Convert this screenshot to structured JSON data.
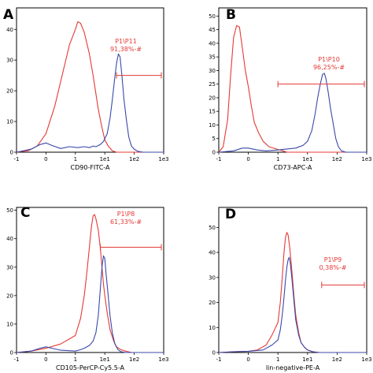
{
  "chart_data": [
    {
      "panel": "A",
      "type": "line",
      "xlabel": "CD90-FITC-A",
      "x_ticks": [
        "-1",
        "0",
        "1",
        "1e1",
        "1e2",
        "1e3"
      ],
      "x_tick_values": [
        -1,
        0,
        1,
        10,
        100,
        1000
      ],
      "y_ticks": [
        0,
        10,
        20,
        30,
        40
      ],
      "ylim": [
        0,
        47
      ],
      "gate": {
        "name": "P1\\P11",
        "percent": "91,38%-#",
        "x_range": [
          25,
          1000
        ],
        "y": 25
      },
      "series": [
        {
          "color": "#e53935",
          "points": [
            [
              -1,
              0
            ],
            [
              -0.6,
              0.5
            ],
            [
              -0.3,
              2
            ],
            [
              0,
              6
            ],
            [
              0.3,
              15
            ],
            [
              0.6,
              27
            ],
            [
              0.8,
              35
            ],
            [
              1,
              40
            ],
            [
              1.2,
              42.5
            ],
            [
              1.5,
              42
            ],
            [
              2,
              39
            ],
            [
              3,
              32
            ],
            [
              4,
              25
            ],
            [
              5,
              19
            ],
            [
              6,
              14
            ],
            [
              8,
              8
            ],
            [
              10,
              4
            ],
            [
              13,
              2
            ],
            [
              18,
              0.5
            ],
            [
              25,
              0
            ],
            [
              1000,
              0
            ]
          ]
        },
        {
          "color": "#3949ab",
          "points": [
            [
              -1,
              0
            ],
            [
              -0.5,
              1
            ],
            [
              -0.2,
              2.5
            ],
            [
              0,
              3
            ],
            [
              0.2,
              2.2
            ],
            [
              0.5,
              1.2
            ],
            [
              0.8,
              1.8
            ],
            [
              1.2,
              1.5
            ],
            [
              2,
              1.8
            ],
            [
              3,
              1.5
            ],
            [
              4,
              2
            ],
            [
              5,
              1.8
            ],
            [
              7,
              2.5
            ],
            [
              9,
              3.5
            ],
            [
              12,
              6
            ],
            [
              15,
              11
            ],
            [
              18,
              17
            ],
            [
              21,
              23
            ],
            [
              25,
              29
            ],
            [
              29,
              32
            ],
            [
              33,
              31
            ],
            [
              38,
              25
            ],
            [
              45,
              17
            ],
            [
              55,
              10
            ],
            [
              65,
              5
            ],
            [
              80,
              2
            ],
            [
              100,
              1
            ],
            [
              130,
              0.3
            ],
            [
              200,
              0
            ],
            [
              1000,
              0
            ]
          ]
        }
      ]
    },
    {
      "panel": "B",
      "type": "line",
      "xlabel": "CD73-APC-A",
      "x_ticks": [
        "-1",
        "0",
        "1",
        "1e1",
        "1e2",
        "1e3"
      ],
      "x_tick_values": [
        -1,
        0,
        1,
        10,
        100,
        1000
      ],
      "y_ticks": [
        0,
        5,
        10,
        15,
        20,
        25,
        30,
        35,
        40,
        45,
        50
      ],
      "ylim": [
        0,
        53
      ],
      "gate": {
        "name": "P1\\P10",
        "percent": "96,25%-#",
        "x_range": [
          1,
          1000
        ],
        "y": 25
      },
      "series": [
        {
          "color": "#e53935",
          "points": [
            [
              -1,
              0
            ],
            [
              -0.85,
              2
            ],
            [
              -0.7,
              12
            ],
            [
              -0.6,
              28
            ],
            [
              -0.5,
              42
            ],
            [
              -0.4,
              46.5
            ],
            [
              -0.3,
              46
            ],
            [
              -0.2,
              38
            ],
            [
              -0.1,
              30
            ],
            [
              0,
              24
            ],
            [
              0.1,
              17
            ],
            [
              0.2,
              11
            ],
            [
              0.35,
              7
            ],
            [
              0.5,
              4
            ],
            [
              0.7,
              2
            ],
            [
              1,
              1
            ],
            [
              1.5,
              0.5
            ],
            [
              2,
              0
            ],
            [
              1000,
              0
            ]
          ]
        },
        {
          "color": "#3949ab",
          "points": [
            [
              -1,
              0
            ],
            [
              -0.5,
              0.5
            ],
            [
              -0.2,
              1.5
            ],
            [
              0,
              1.5
            ],
            [
              0.3,
              0.8
            ],
            [
              0.6,
              0.5
            ],
            [
              1,
              0.8
            ],
            [
              2,
              1.2
            ],
            [
              4,
              1.5
            ],
            [
              7,
              2.5
            ],
            [
              10,
              4
            ],
            [
              14,
              8
            ],
            [
              18,
              14
            ],
            [
              22,
              20
            ],
            [
              27,
              25
            ],
            [
              32,
              28.5
            ],
            [
              37,
              29
            ],
            [
              42,
              27
            ],
            [
              50,
              22
            ],
            [
              60,
              16
            ],
            [
              75,
              10
            ],
            [
              90,
              5
            ],
            [
              110,
              2
            ],
            [
              140,
              0.5
            ],
            [
              200,
              0
            ],
            [
              1000,
              0
            ]
          ]
        }
      ]
    },
    {
      "panel": "C",
      "type": "line",
      "xlabel": "CD105-PerCP-Cy5.5-A",
      "x_ticks": [
        "-1",
        "0",
        "1",
        "1e1",
        "1e2",
        "1e3"
      ],
      "x_tick_values": [
        -1,
        0,
        1,
        10,
        100,
        1000
      ],
      "y_ticks": [
        0,
        10,
        20,
        30,
        40,
        50
      ],
      "ylim": [
        0,
        51
      ],
      "gate": {
        "name": "P1\\P8",
        "percent": "61,33%-#",
        "x_range": [
          7,
          1000
        ],
        "y": 37
      },
      "series": [
        {
          "color": "#e53935",
          "points": [
            [
              -1,
              0
            ],
            [
              -0.5,
              0.5
            ],
            [
              0,
              1.5
            ],
            [
              0.5,
              3
            ],
            [
              1,
              6
            ],
            [
              1.5,
              12
            ],
            [
              2,
              20
            ],
            [
              2.5,
              29
            ],
            [
              3,
              37
            ],
            [
              3.5,
              44
            ],
            [
              4,
              48
            ],
            [
              4.5,
              48.5
            ],
            [
              5,
              47
            ],
            [
              6,
              43
            ],
            [
              7,
              37
            ],
            [
              8,
              30
            ],
            [
              9,
              24
            ],
            [
              10,
              20
            ],
            [
              12,
              14
            ],
            [
              15,
              8
            ],
            [
              20,
              4
            ],
            [
              25,
              2
            ],
            [
              35,
              1
            ],
            [
              50,
              0.5
            ],
            [
              80,
              0
            ],
            [
              1000,
              0
            ]
          ]
        },
        {
          "color": "#3949ab",
          "points": [
            [
              -1,
              0
            ],
            [
              -0.5,
              0.5
            ],
            [
              -0.2,
              1.5
            ],
            [
              0,
              2
            ],
            [
              0.2,
              1.5
            ],
            [
              0.5,
              0.8
            ],
            [
              1,
              0.5
            ],
            [
              1.5,
              1
            ],
            [
              2,
              1.5
            ],
            [
              3,
              2.5
            ],
            [
              4,
              4
            ],
            [
              5,
              7
            ],
            [
              6,
              13
            ],
            [
              7,
              22
            ],
            [
              8,
              30
            ],
            [
              9,
              34
            ],
            [
              10,
              33
            ],
            [
              11,
              28
            ],
            [
              13,
              20
            ],
            [
              15,
              13
            ],
            [
              18,
              7
            ],
            [
              22,
              3
            ],
            [
              28,
              1
            ],
            [
              35,
              0.3
            ],
            [
              50,
              0
            ],
            [
              1000,
              0
            ]
          ]
        }
      ]
    },
    {
      "panel": "D",
      "type": "line",
      "xlabel": "lin-negative-PE-A",
      "x_ticks": [
        "-1",
        "0",
        "1",
        "1e1",
        "1e2",
        "1e3"
      ],
      "x_tick_values": [
        -1,
        0,
        1,
        10,
        100,
        1000
      ],
      "y_ticks": [
        0,
        10,
        20,
        30,
        40,
        50
      ],
      "ylim": [
        0,
        58
      ],
      "gate": {
        "name": "P1\\P9",
        "percent": "0,38%-#",
        "x_range": [
          30,
          1000
        ],
        "y": 27
      },
      "series": [
        {
          "color": "#e53935",
          "points": [
            [
              -1,
              0
            ],
            [
              -0.5,
              0.3
            ],
            [
              0,
              0.5
            ],
            [
              0.3,
              1
            ],
            [
              0.6,
              3
            ],
            [
              0.8,
              7
            ],
            [
              1,
              12
            ],
            [
              1.2,
              20
            ],
            [
              1.4,
              30
            ],
            [
              1.6,
              40
            ],
            [
              1.8,
              46
            ],
            [
              2,
              48
            ],
            [
              2.2,
              47
            ],
            [
              2.5,
              42
            ],
            [
              3,
              32
            ],
            [
              3.5,
              22
            ],
            [
              4,
              15
            ],
            [
              5,
              8
            ],
            [
              6,
              4
            ],
            [
              8,
              2
            ],
            [
              10,
              1
            ],
            [
              15,
              0.3
            ],
            [
              25,
              0
            ],
            [
              1000,
              0
            ]
          ]
        },
        {
          "color": "#3949ab",
          "points": [
            [
              -1,
              0
            ],
            [
              -0.5,
              0.3
            ],
            [
              0,
              0.5
            ],
            [
              0.5,
              1
            ],
            [
              0.8,
              3
            ],
            [
              1,
              5
            ],
            [
              1.2,
              9
            ],
            [
              1.4,
              15
            ],
            [
              1.6,
              22
            ],
            [
              1.8,
              29
            ],
            [
              2,
              34
            ],
            [
              2.2,
              37
            ],
            [
              2.4,
              38
            ],
            [
              2.6,
              36
            ],
            [
              3,
              29
            ],
            [
              3.5,
              20
            ],
            [
              4,
              13
            ],
            [
              5,
              7
            ],
            [
              6,
              4
            ],
            [
              8,
              2
            ],
            [
              10,
              1
            ],
            [
              15,
              0.3
            ],
            [
              25,
              0
            ],
            [
              1000,
              0
            ]
          ]
        }
      ]
    }
  ]
}
